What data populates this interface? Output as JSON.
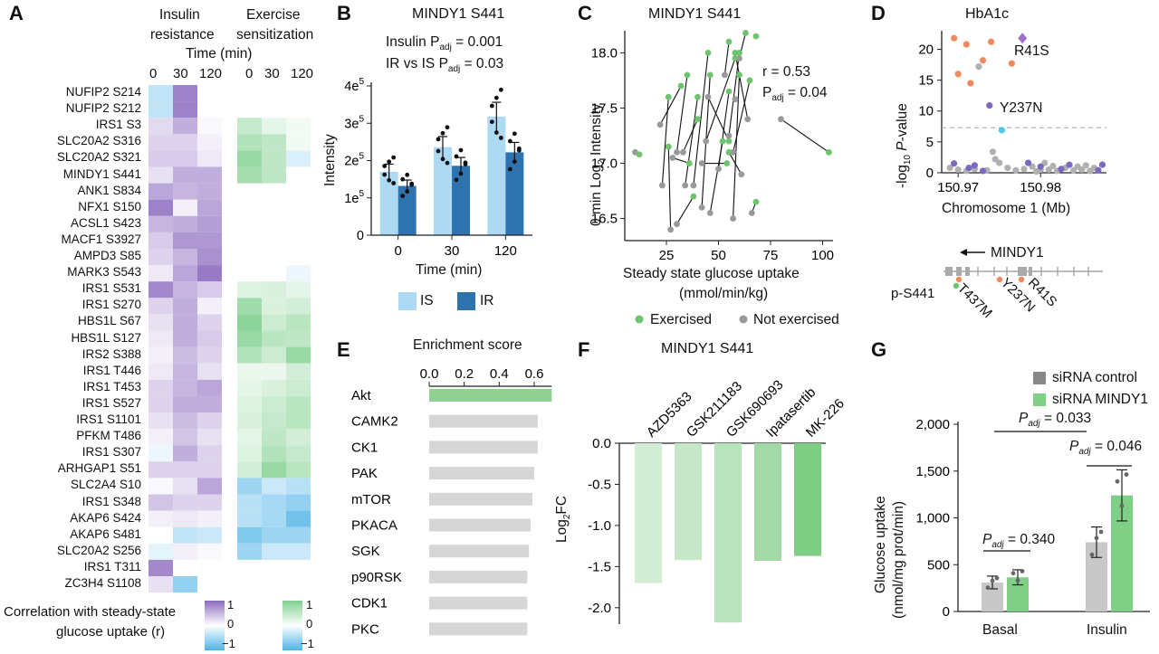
{
  "panels": {
    "A": "A",
    "B": "B",
    "C": "C",
    "D": "D",
    "E": "E",
    "F": "F",
    "G": "G"
  },
  "panelA": {
    "header_ir": [
      "Insulin",
      "resistance"
    ],
    "header_es": [
      "Exercise",
      "sensitization"
    ],
    "time_label": "Time (min)",
    "time_ticks_ir": [
      "0",
      "30",
      "120"
    ],
    "time_ticks_es": [
      "0",
      "30",
      "120"
    ],
    "rows": [
      "NUFIP2 S214",
      "NUFIP2 S212",
      "IRS1 S3",
      "SLC20A2 S316",
      "SLC20A2 S321",
      "MINDY1 S441",
      "ANK1 S834",
      "NFX1 S150",
      "ACSL1 S423",
      "MACF1 S3927",
      "AMPD3 S85",
      "MARK3 S543",
      "IRS1 S531",
      "IRS1 S270",
      "HBS1L S67",
      "HBS1L S127",
      "IRS2 S388",
      "IRS1 T446",
      "IRS1 T453",
      "IRS1 S527",
      "IRS1 S1101",
      "PFKM T486",
      "IRS1 S307",
      "ARHGAP1 S51",
      "SLC2A4 S10",
      "IRS1 S348",
      "AKAP6 S424",
      "AKAP6 S481",
      "SLC20A2 S256",
      "IRS1 T311",
      "ZC3H4 S1108"
    ],
    "ir_values": [
      [
        -0.35,
        0.85,
        0.0
      ],
      [
        -0.35,
        0.85,
        0.0
      ],
      [
        0.25,
        0.55,
        0.05
      ],
      [
        0.3,
        0.3,
        0.1
      ],
      [
        0.35,
        0.35,
        0.15
      ],
      [
        0.2,
        0.55,
        0.55
      ],
      [
        0.6,
        0.5,
        0.55
      ],
      [
        0.85,
        0.1,
        0.6
      ],
      [
        0.5,
        0.55,
        0.65
      ],
      [
        0.35,
        0.7,
        0.7
      ],
      [
        0.3,
        0.5,
        0.75
      ],
      [
        0.15,
        0.6,
        0.9
      ],
      [
        0.8,
        0.5,
        0.35
      ],
      [
        0.3,
        0.55,
        0.1
      ],
      [
        0.2,
        0.55,
        0.3
      ],
      [
        0.15,
        0.55,
        0.35
      ],
      [
        0.1,
        0.45,
        0.3
      ],
      [
        0.15,
        0.5,
        0.2
      ],
      [
        0.3,
        0.5,
        0.6
      ],
      [
        0.3,
        0.55,
        0.55
      ],
      [
        0.2,
        0.45,
        0.3
      ],
      [
        0.1,
        0.4,
        0.2
      ],
      [
        -0.1,
        0.55,
        0.3
      ],
      [
        0.3,
        0.3,
        0.3
      ],
      [
        0.05,
        0.2,
        0.6
      ],
      [
        0.4,
        0.3,
        0.3
      ],
      [
        0.1,
        0.15,
        0.1
      ],
      [
        0.0,
        -0.35,
        -0.3
      ],
      [
        -0.15,
        0.1,
        0.05
      ],
      [
        0.8,
        0.0,
        0.0
      ],
      [
        0.2,
        -0.6,
        0.0
      ]
    ],
    "es_values": [
      [
        null,
        null,
        null
      ],
      [
        null,
        null,
        null
      ],
      [
        0.45,
        0.2,
        0.1
      ],
      [
        0.6,
        0.5,
        0.1
      ],
      [
        0.8,
        0.5,
        -0.2
      ],
      [
        0.7,
        0.5,
        0.0
      ],
      [
        null,
        null,
        null
      ],
      [
        null,
        null,
        null
      ],
      [
        null,
        null,
        null
      ],
      [
        null,
        null,
        null
      ],
      [
        null,
        null,
        null
      ],
      [
        0.0,
        0.0,
        -0.1
      ],
      [
        0.25,
        0.3,
        0.2
      ],
      [
        0.75,
        0.3,
        0.35
      ],
      [
        0.9,
        0.4,
        0.55
      ],
      [
        0.8,
        0.55,
        0.5
      ],
      [
        0.6,
        0.4,
        0.8
      ],
      [
        0.15,
        0.15,
        0.35
      ],
      [
        0.2,
        0.3,
        0.4
      ],
      [
        0.25,
        0.4,
        0.55
      ],
      [
        0.3,
        0.45,
        0.55
      ],
      [
        0.2,
        0.5,
        0.35
      ],
      [
        0.25,
        0.6,
        0.45
      ],
      [
        0.35,
        0.8,
        0.55
      ],
      [
        -0.55,
        -0.3,
        -0.4
      ],
      [
        -0.4,
        -0.5,
        -0.6
      ],
      [
        -0.4,
        -0.5,
        -0.8
      ],
      [
        -0.7,
        -0.55,
        -0.55
      ],
      [
        -0.55,
        -0.3,
        -0.3
      ],
      [
        null,
        null,
        null
      ],
      [
        null,
        null,
        null
      ]
    ],
    "legend_title": [
      "Correlation with steady-state",
      "glucose uptake (r)"
    ],
    "legend_ticks": [
      "1",
      "0",
      "−1"
    ],
    "colors": {
      "purple": "#8c6bbf",
      "blue": "#4db3e6",
      "green": "#7fcf8f"
    }
  },
  "panelB": {
    "title": "MINDY1 S441",
    "stat1": "Insulin P",
    "stat1_sub": "adj",
    "stat1_val": " = 0.001",
    "stat2": "IR vs IS P",
    "stat2_sub": "adj",
    "stat2_val": " = 0.03",
    "ylabel": "Intensity",
    "xlabel": "Time (min)",
    "yticks": [
      "0",
      "1e",
      "2e",
      "3e",
      "4e"
    ],
    "ytick_sup": "5",
    "legend": [
      "IS",
      "IR"
    ],
    "colors": {
      "IS": "#aed9f2",
      "IR": "#2e73b0"
    },
    "chart_data": {
      "type": "bar",
      "categories": [
        "0",
        "30",
        "120"
      ],
      "series": [
        {
          "name": "IS",
          "values": [
            170000,
            236000,
            318000
          ]
        },
        {
          "name": "IR",
          "values": [
            132000,
            186000,
            222000
          ]
        }
      ],
      "ylim": [
        0,
        400000
      ]
    }
  },
  "panelC": {
    "title": "MINDY1 S441",
    "stat_r": "r = 0.53",
    "stat_p": "P",
    "stat_p_sub": "adj",
    "stat_p_val": " = 0.04",
    "ylabel": "0 min Log",
    "ylabel_sub": "2",
    "ylabel_tail": " Intensity",
    "xlabel": "Steady state glucose uptake",
    "xlabel2": "(mmol/min/kg)",
    "legend": [
      "Exercised",
      "Not exercised"
    ],
    "colors": {
      "exercised": "#6cc46c",
      "not": "#999999"
    },
    "chart_data": {
      "type": "scatter",
      "xlim": [
        5,
        105
      ],
      "ylim": [
        16.3,
        18.2
      ],
      "pairs": [
        [
          [
            22,
            17.35
          ],
          [
            32,
            17.7
          ]
        ],
        [
          [
            23,
            16.8
          ],
          [
            26,
            17.6
          ]
        ],
        [
          [
            27,
            16.4
          ],
          [
            26,
            17.15
          ]
        ],
        [
          [
            30,
            17.1
          ],
          [
            35,
            17.8
          ]
        ],
        [
          [
            34,
            16.8
          ],
          [
            40,
            17.6
          ]
        ],
        [
          [
            38,
            16.8
          ],
          [
            45,
            18.0
          ]
        ],
        [
          [
            44,
            17.2
          ],
          [
            58,
            17.95
          ]
        ],
        [
          [
            42,
            16.6
          ],
          [
            46,
            17.8
          ]
        ],
        [
          [
            45,
            17.6
          ],
          [
            55,
            17.2
          ]
        ],
        [
          [
            46,
            16.55
          ],
          [
            52,
            17.2
          ]
        ],
        [
          [
            50,
            16.95
          ],
          [
            55,
            17.65
          ]
        ],
        [
          [
            53,
            17.8
          ],
          [
            55,
            18.1
          ]
        ],
        [
          [
            55,
            17.25
          ],
          [
            60,
            18.0
          ]
        ],
        [
          [
            57,
            16.5
          ],
          [
            60,
            17.8
          ]
        ],
        [
          [
            61,
            16.9
          ],
          [
            55,
            17.1
          ]
        ],
        [
          [
            57,
            17.1
          ],
          [
            65,
            17.75
          ]
        ],
        [
          [
            60,
            17.95
          ],
          [
            63,
            18.18
          ]
        ],
        [
          [
            64,
            17.4
          ],
          [
            58,
            18.0
          ]
        ],
        [
          [
            66,
            16.55
          ],
          [
            68,
            16.65
          ]
        ],
        [
          [
            30,
            16.45
          ],
          [
            38,
            16.7
          ]
        ],
        [
          [
            33,
            17.1
          ],
          [
            40,
            17.4
          ]
        ],
        [
          [
            80,
            17.4
          ],
          [
            103,
            17.1
          ]
        ],
        [
          [
            28,
            17.05
          ],
          [
            36,
            17.0
          ]
        ],
        [
          [
            42,
            17.0
          ],
          [
            54,
            17.0
          ]
        ]
      ],
      "lone_grey": [
        [
          10,
          17.1
        ],
        [
          58,
          17.58
        ]
      ],
      "lone_green": [
        [
          12,
          17.08
        ],
        [
          68,
          18.15
        ]
      ]
    }
  },
  "panelD": {
    "title": "HbA1c",
    "ylabel_pre": "-log",
    "ylabel_sub": "10",
    "ylabel_p": " P",
    "ylabel_post": "-value",
    "xlabel": "Chromosome 1 (Mb)",
    "yticks": [
      "0",
      "5",
      "10",
      "15",
      "20"
    ],
    "xticks": [
      "150.97",
      "150.98"
    ],
    "annot_r41s": "R41S",
    "annot_y237n": "Y237N",
    "gene": "MINDY1",
    "sites": [
      "p-S441",
      "T437M",
      "Y237N",
      "R41S"
    ],
    "colors": {
      "orange": "#f08a5d",
      "purple": "#7b68c0",
      "grey": "#b0b0b0",
      "cyan": "#4fc7e6",
      "diamond": "#a070c8"
    },
    "chart_data": {
      "type": "scatter",
      "xlim": [
        150.968,
        150.988
      ],
      "ylim": [
        0,
        23
      ],
      "threshold": 7.3,
      "orange": [
        [
          150.9695,
          21.8
        ],
        [
          150.97,
          16
        ],
        [
          150.971,
          20.8
        ],
        [
          150.9715,
          14.5
        ],
        [
          150.973,
          18.2
        ],
        [
          150.974,
          21.2
        ],
        [
          150.9765,
          17.7
        ]
      ],
      "purple": [
        [
          150.9738,
          10.9
        ],
        [
          150.9695,
          1.5
        ],
        [
          150.9713,
          0.8
        ],
        [
          150.972,
          1.2
        ],
        [
          150.973,
          0.3
        ],
        [
          150.9785,
          1.6
        ],
        [
          150.98,
          1.0
        ],
        [
          150.9825,
          0.6
        ],
        [
          150.9835,
          1.3
        ],
        [
          150.987,
          0.4
        ],
        [
          150.9875,
          1.3
        ]
      ],
      "grey": [
        [
          150.9725,
          17.2
        ],
        [
          150.9742,
          3.4
        ],
        [
          150.9745,
          2.2
        ],
        [
          150.969,
          0.8
        ],
        [
          150.97,
          0.5
        ],
        [
          150.971,
          0.3
        ],
        [
          150.972,
          0.6
        ],
        [
          150.9735,
          0.4
        ],
        [
          150.975,
          1.6
        ],
        [
          150.976,
          0.8
        ],
        [
          150.977,
          0.4
        ],
        [
          150.978,
          0.6
        ],
        [
          150.979,
          1.0
        ],
        [
          150.9795,
          0.2
        ],
        [
          150.98,
          0.5
        ],
        [
          150.9805,
          1.6
        ],
        [
          150.981,
          0.5
        ],
        [
          150.9815,
          1.1
        ],
        [
          150.982,
          0.3
        ],
        [
          150.983,
          0.8
        ],
        [
          150.984,
          0.4
        ],
        [
          150.9845,
          1.0
        ],
        [
          150.985,
          0.5
        ],
        [
          150.9855,
          1.2
        ],
        [
          150.986,
          0.3
        ],
        [
          150.9865,
          0.8
        ]
      ],
      "cyan": [
        [
          150.9753,
          6.9
        ]
      ],
      "diamond": [
        [
          150.9778,
          21.8
        ]
      ]
    }
  },
  "panelE": {
    "axis_title": "Enrichment score",
    "xticks": [
      "0.0",
      "0.2",
      "0.4",
      "0.6"
    ],
    "colors": {
      "top": "#8fd190",
      "rest": "#d6d6d6"
    },
    "chart_data": {
      "type": "bar",
      "categories": [
        "Akt",
        "CAMK2",
        "CK1",
        "PAK",
        "mTOR",
        "PKACA",
        "SGK",
        "p90RSK",
        "CDK1",
        "PKC"
      ],
      "values": [
        0.7,
        0.62,
        0.62,
        0.6,
        0.59,
        0.58,
        0.57,
        0.56,
        0.56,
        0.56
      ],
      "xlim": [
        0,
        0.7
      ]
    }
  },
  "panelF": {
    "title": "MINDY1 S441",
    "ylabel": "Log",
    "ylabel_sub": "2",
    "ylabel_tail": "FC",
    "yticks": [
      "0.0",
      "-0.5",
      "-1.0",
      "-1.5",
      "-2.0"
    ],
    "colors": [
      "#d2edd3",
      "#c6e8c8",
      "#b9e3bc",
      "#a3d9a7",
      "#7fcc85"
    ],
    "chart_data": {
      "type": "bar",
      "categories": [
        "AZD5363",
        "GSK211183",
        "GSK690693",
        "Ipatasertib",
        "MK-226"
      ],
      "values": [
        -1.7,
        -1.42,
        -2.18,
        -1.43,
        -1.37
      ],
      "ylim": [
        -2.2,
        0
      ]
    }
  },
  "panelG": {
    "legend": [
      "siRNA control",
      "siRNA MINDY1"
    ],
    "ylabel": "Glucose uptake",
    "ylabel2": "(nmol/mg prot/min)",
    "yticks": [
      "0",
      "500",
      "1,000",
      "1,500",
      "2,000"
    ],
    "groups": [
      "Basal",
      "Insulin"
    ],
    "sig": [
      {
        "label_p": "P",
        "label_sub": "adj",
        "label_val": " = 0.340"
      },
      {
        "label_p": "P",
        "label_sub": "adj",
        "label_val": " = 0.046"
      },
      {
        "label_p": "P",
        "label_sub": "adj",
        "label_val": " = 0.033"
      }
    ],
    "colors": {
      "control": "#c8c8c8",
      "mindy1": "#7fcf86",
      "legend_control": "#888888",
      "legend_mindy1": "#7fcf86"
    },
    "chart_data": {
      "type": "bar",
      "categories": [
        "Basal",
        "Insulin"
      ],
      "series": [
        {
          "name": "siRNA control",
          "values": [
            310,
            740
          ]
        },
        {
          "name": "siRNA MINDY1",
          "values": [
            365,
            1240
          ]
        }
      ],
      "ylim": [
        0,
        2000
      ]
    }
  }
}
